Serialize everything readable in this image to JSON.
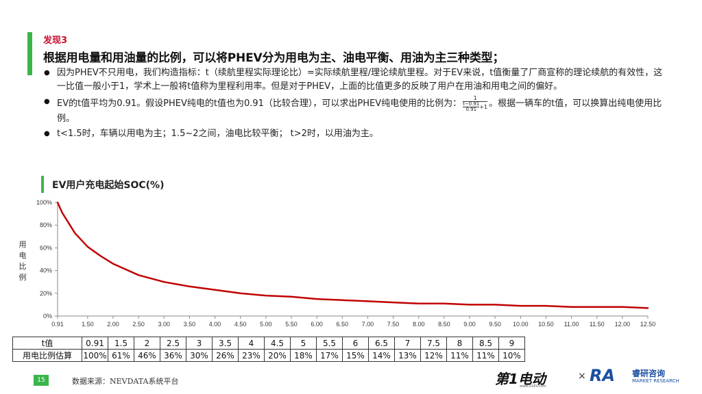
{
  "slide": {
    "finding": "发现3",
    "headline": "根据用电量和用油量的比例，可以将PHEV分为用电为主、油电平衡、用油为主三种类型；",
    "bullet1": "因为PHEV不只用电，我们构造指标：t（续航里程实际理论比）=实际续航里程/理论续航里程。对于EV来说，t值衡量了厂商宣称的理论续航的有效性，这一比值一般小于1，学术上一般将t值称为里程利用率。但是对于PHEV，上面的比值更多的反映了用户在用油和用电之间的偏好。",
    "bullet2_pre": "EV的t值平均为0.91。假设PHEV纯电的t值也为0.91（比较合理），可以求出PHEV纯电使用的比例为：",
    "bullet2_post": "。根据一辆车的t值，可以换算出纯电使用比例。",
    "formula_num": "1",
    "formula_t": "t−0.91",
    "formula_d": "0.91",
    "formula_plus": "+1",
    "bullet3": "t<1.5时，车辆以用电为主；1.5~2之间，油电比较平衡； t>2时，以用油为主。"
  },
  "chart_title": "EV用户充电起始SOC(%)",
  "ylabel_chars": [
    "用",
    "电",
    "比",
    "例"
  ],
  "colors": {
    "green": "#3bb54a",
    "red": "#c8102e",
    "line": "#c00000"
  },
  "chart_data": {
    "type": "line",
    "title": "EV用户充电起始SOC(%)",
    "ylabel": "用电比例",
    "xlabel": "",
    "xlim": [
      0.91,
      12.5
    ],
    "ylim": [
      0,
      100
    ],
    "y_unit": "%",
    "grid": false,
    "x_ticks": [
      "0.91",
      "1.50",
      "2.00",
      "2.50",
      "3.00",
      "3.50",
      "4.00",
      "4.50",
      "5.00",
      "5.50",
      "6.00",
      "6.50",
      "7.00",
      "7.50",
      "8.00",
      "8.50",
      "9.00",
      "9.50",
      "10.00",
      "10.50",
      "11.00",
      "11.50",
      "12.00",
      "12.50"
    ],
    "y_ticks": [
      "0%",
      "20%",
      "40%",
      "60%",
      "80%",
      "100%"
    ],
    "series": [
      {
        "x": [
          0.91,
          1.0,
          1.25,
          1.5,
          1.75,
          2.0,
          2.5,
          3.0,
          3.5,
          4.0,
          4.5,
          5.0,
          5.5,
          6.0,
          6.5,
          7.0,
          7.5,
          8.0,
          8.5,
          9.0,
          9.5,
          10.0,
          10.5,
          11.0,
          11.5,
          12.0,
          12.5
        ],
        "y": [
          100,
          91,
          73,
          61,
          53,
          46,
          36,
          30,
          26,
          23,
          20,
          18,
          17,
          15,
          14,
          13,
          12,
          11,
          11,
          10,
          10,
          9,
          9,
          8,
          8,
          8,
          7
        ]
      }
    ]
  },
  "table": {
    "row1_label": "t值",
    "row1": [
      "0.91",
      "1.5",
      "2",
      "2.5",
      "3",
      "3.5",
      "4",
      "4.5",
      "5",
      "5.5",
      "6",
      "6.5",
      "7",
      "7.5",
      "8",
      "8.5",
      "9"
    ],
    "row2_label": "用电比例估算",
    "row2": [
      "100%",
      "61%",
      "46%",
      "36%",
      "30%",
      "26%",
      "23%",
      "20%",
      "18%",
      "17%",
      "15%",
      "14%",
      "13%",
      "12%",
      "11%",
      "11%",
      "10%"
    ]
  },
  "footer": {
    "page": "15",
    "source": "数据来源：NEVDATA系统平台",
    "logo1": "第1电动",
    "logo1_url": "www.D1EV.com",
    "times": "×",
    "logo2": "RA",
    "logo2_cn": "睿研咨询",
    "logo2_en": "MARKET RESEARCH"
  }
}
